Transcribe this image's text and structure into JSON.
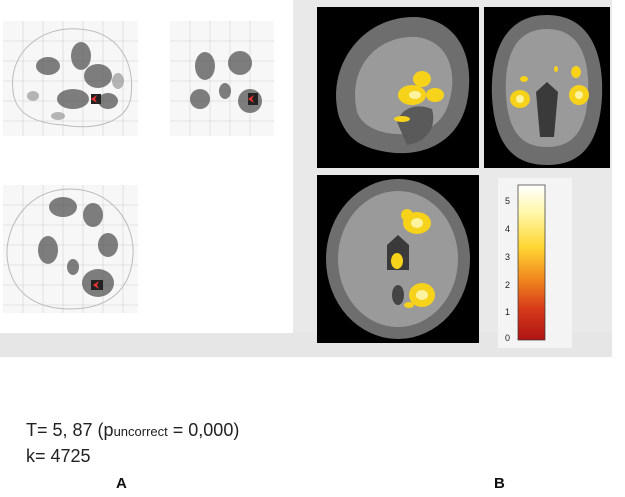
{
  "stats": {
    "t_prefix": "T= 5, 87 (p",
    "p_sub": "uncorrect",
    "t_suffix": " = 0,000)",
    "k_line": "k= 4725"
  },
  "labels": {
    "a": "A",
    "b": "B"
  },
  "colorbar": {
    "ticks": [
      "5",
      "4",
      "3",
      "2",
      "1",
      "0"
    ],
    "colors": [
      "#ffffff",
      "#fff7a8",
      "#ffd633",
      "#f28a1e",
      "#d63a1a",
      "#b01414"
    ]
  },
  "colors": {
    "blob": "#f6d21a",
    "blob_core": "#fff3a0",
    "panel_bg": "#e9e9e9"
  }
}
